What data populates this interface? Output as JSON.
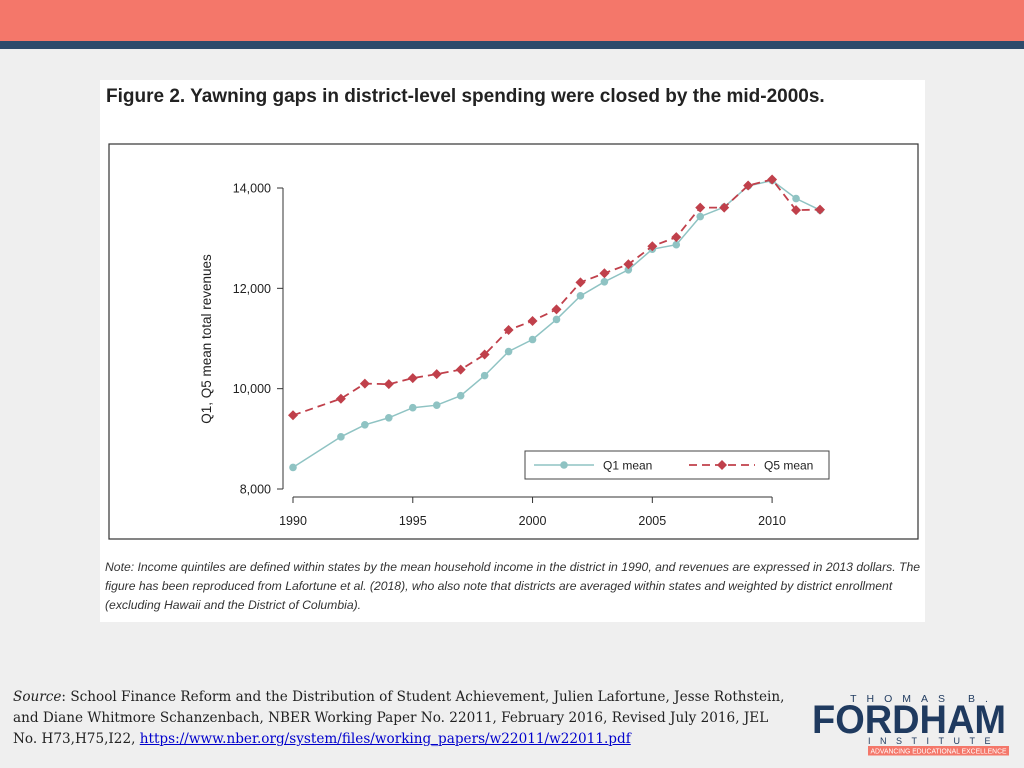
{
  "figure": {
    "title": "Figure 2. Yawning gaps in district-level spending were closed by the mid-2000s.",
    "note": "Note: Income quintiles are defined within states by the mean household income in the district in 1990, and revenues are expressed in 2013 dollars. The figure has been reproduced from Lafortune et al. (2018), who also note that districts are averaged within states and weighted by district enrollment (excluding Hawaii and the District of Columbia)."
  },
  "chart_data": {
    "type": "line",
    "title": "",
    "xlabel": "",
    "ylabel": "Q1, Q5 mean total revenues",
    "xlim": [
      1990,
      2012
    ],
    "ylim": [
      8000,
      14000
    ],
    "x_ticks": [
      1990,
      1995,
      2000,
      2005,
      2010
    ],
    "y_ticks": [
      8000,
      10000,
      12000,
      14000
    ],
    "y_tick_labels": [
      "8,000",
      "10,000",
      "12,000",
      "14,000"
    ],
    "grid": false,
    "legend_position": "bottom-right",
    "x": [
      1990,
      1992,
      1993,
      1994,
      1995,
      1996,
      1997,
      1998,
      1999,
      2000,
      2001,
      2002,
      2003,
      2004,
      2005,
      2006,
      2007,
      2008,
      2009,
      2010,
      2011,
      2012
    ],
    "series": [
      {
        "name": "Q1 mean",
        "color": "#8fc3c3",
        "style": "solid",
        "marker": "circle",
        "values": [
          8430,
          9040,
          9280,
          9420,
          9620,
          9670,
          9860,
          10260,
          10740,
          10980,
          11380,
          11850,
          12130,
          12370,
          12780,
          12870,
          13430,
          13620,
          14040,
          14150,
          13790,
          13560
        ]
      },
      {
        "name": "Q5 mean",
        "color": "#c0404b",
        "style": "dashed",
        "marker": "diamond",
        "values": [
          9470,
          9800,
          10100,
          10090,
          10210,
          10290,
          10380,
          10680,
          11170,
          11350,
          11580,
          12120,
          12300,
          12480,
          12840,
          13020,
          13610,
          13610,
          14050,
          14170,
          13560,
          13570
        ]
      }
    ]
  },
  "source": {
    "label": "Source",
    "text": ": School Finance Reform and the Distribution of Student Achievement, Julien Lafortune, Jesse Rothstein, and Diane Whitmore Schanzenbach,  NBER Working Paper No. 22011, February 2016, Revised July 2016, JEL No. H73,H75,I22, ",
    "link": "https://www.nber.org/system/files/working_papers/w22011/w22011.pdf"
  },
  "logo": {
    "line1": "THOMAS B.",
    "line2": "FORDHAM",
    "line3": "INSTITUTE",
    "tagline": "ADVANCING EDUCATIONAL EXCELLENCE",
    "colors": {
      "navy": "#1f3a5f",
      "coral": "#f4776a"
    }
  }
}
